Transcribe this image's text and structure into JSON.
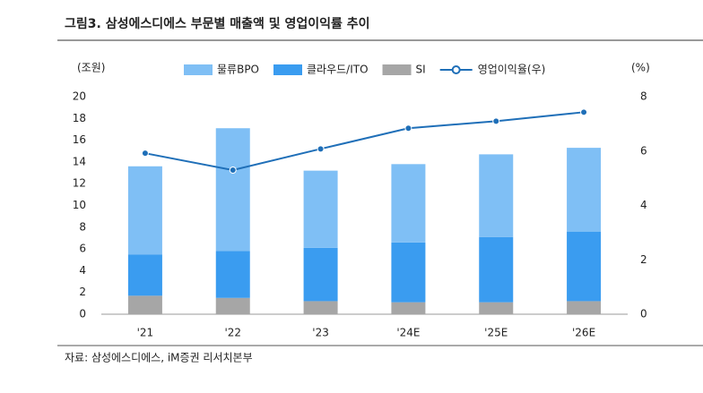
{
  "chart_data": {
    "type": "bar",
    "title": "그림3. 삼성에스디에스 부문별 매출액 및 영업이익률 추이",
    "source": "자료: 삼성에스디에스, iM증권 리서치본부",
    "y_label": "(조원)",
    "y2_label": "(%)",
    "categories": [
      "'21",
      "'22",
      "'23",
      "'24E",
      "'25E",
      "'26E"
    ],
    "series": [
      {
        "name": "물류BPO",
        "color": "#7fbff5",
        "values": [
          8.1,
          11.3,
          7.1,
          7.2,
          7.6,
          7.7
        ]
      },
      {
        "name": "클라우드/ITO",
        "color": "#3a9cf0",
        "values": [
          3.8,
          4.3,
          4.9,
          5.5,
          6.0,
          6.4
        ]
      },
      {
        "name": "SI",
        "color": "#a6a6a6",
        "values": [
          1.7,
          1.5,
          1.2,
          1.1,
          1.1,
          1.2
        ]
      },
      {
        "name": "영업이익율(우)",
        "type": "line",
        "axis": "y2",
        "color": "#1f6fb8",
        "values": [
          5.92,
          5.3,
          6.08,
          6.84,
          7.1,
          7.43
        ]
      }
    ],
    "stacked": true,
    "ylim": [
      0,
      20
    ],
    "yticks": [
      0,
      2,
      4,
      6,
      8,
      10,
      12,
      14,
      16,
      18,
      20
    ],
    "y2lim": [
      0,
      8
    ],
    "y2ticks": [
      0,
      2,
      4,
      6,
      8
    ]
  }
}
